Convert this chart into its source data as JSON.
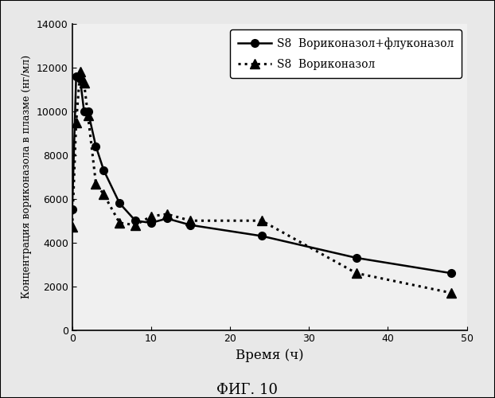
{
  "series1_label": "S8  Вориконазол+флуконазол",
  "series2_label": "S8  Вориконазол",
  "series1_x": [
    0,
    0.5,
    1,
    1.5,
    2,
    3,
    4,
    6,
    8,
    10,
    12,
    15,
    24,
    36,
    48
  ],
  "series1_y": [
    5500,
    11600,
    11500,
    10000,
    10000,
    8400,
    7300,
    5800,
    5000,
    4900,
    5100,
    4800,
    4300,
    3300,
    2600
  ],
  "series2_x": [
    0,
    0.5,
    1,
    1.5,
    2,
    3,
    4,
    6,
    8,
    10,
    12,
    15,
    24,
    36,
    48
  ],
  "series2_y": [
    4700,
    9500,
    11800,
    11300,
    9800,
    6700,
    6200,
    4900,
    4800,
    5200,
    5300,
    5000,
    5000,
    2600,
    1700
  ],
  "xlabel": "Время (ч)",
  "ylabel": "Концентрация вориконазола в плазме (нг/мл)",
  "ylim": [
    0,
    14000
  ],
  "xlim": [
    0,
    50
  ],
  "yticks": [
    0,
    2000,
    4000,
    6000,
    8000,
    10000,
    12000,
    14000
  ],
  "xticks": [
    0,
    10,
    20,
    30,
    40,
    50
  ],
  "caption": "ФИГ. 10",
  "background_color": "#e8e8e8",
  "plot_bg_color": "#f0f0f0",
  "line1_color": "#000000",
  "line2_color": "#000000"
}
